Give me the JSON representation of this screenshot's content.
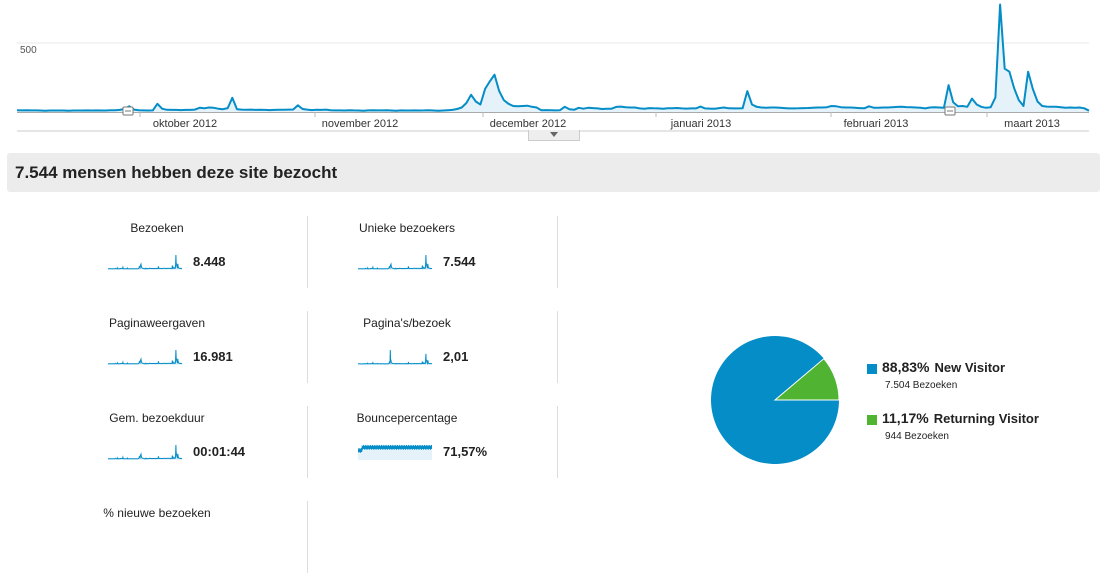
{
  "colors": {
    "line": "#058dc7",
    "fill": "#e6f2fa",
    "new": "#058dc7",
    "returning": "#50b432",
    "headline_bg": "#ececec"
  },
  "chart_data": {
    "type": "area",
    "title": "",
    "y_tick_label": "500",
    "ylim": [
      0,
      750
    ],
    "x_labels": [
      "oktober 2012",
      "november 2012",
      "december 2012",
      "januari 2013",
      "februari 2013",
      "maart 2013"
    ],
    "series": [
      {
        "values": [
          12,
          11,
          12,
          11,
          11,
          10,
          9,
          10,
          10,
          10,
          10,
          9,
          10,
          10,
          10,
          11,
          10,
          11,
          10,
          10,
          12,
          12,
          14,
          22,
          38,
          16,
          12,
          11,
          10,
          11,
          55,
          22,
          15,
          14,
          14,
          13,
          14,
          14,
          16,
          28,
          25,
          30,
          28,
          22,
          19,
          26,
          95,
          19,
          16,
          15,
          16,
          14,
          15,
          14,
          13,
          14,
          15,
          15,
          16,
          17,
          45,
          20,
          16,
          13,
          15,
          14,
          16,
          12,
          11,
          11,
          10,
          12,
          11,
          10,
          9,
          11,
          12,
          11,
          11,
          12,
          10,
          9,
          11,
          10,
          10,
          11,
          10,
          11,
          12,
          10,
          9,
          10,
          12,
          14,
          20,
          30,
          60,
          115,
          70,
          50,
          155,
          205,
          250,
          140,
          80,
          55,
          40,
          38,
          40,
          42,
          35,
          30,
          12,
          13,
          12,
          11,
          12,
          35,
          18,
          15,
          28,
          22,
          28,
          26,
          24,
          20,
          22,
          22,
          34,
          36,
          32,
          30,
          30,
          24,
          22,
          26,
          25,
          24,
          22,
          25,
          25,
          27,
          24,
          23,
          24,
          24,
          36,
          24,
          23,
          22,
          26,
          30,
          25,
          24,
          24,
          25,
          140,
          50,
          35,
          30,
          28,
          30,
          30,
          28,
          26,
          24,
          24,
          25,
          26,
          27,
          29,
          30,
          30,
          32,
          40,
          38,
          32,
          30,
          30,
          28,
          26,
          25,
          38,
          29,
          29,
          30,
          30,
          32,
          34,
          35,
          33,
          32,
          30,
          28,
          24,
          30,
          32,
          30,
          28,
          180,
          65,
          38,
          40,
          35,
          90,
          50,
          35,
          28,
          32,
          98,
          720,
          290,
          270,
          160,
          80,
          40,
          270,
          155,
          70,
          40,
          36,
          35,
          35,
          32,
          28,
          30,
          28,
          30,
          25,
          9
        ]
      }
    ],
    "annotations_at": [
      18,
      136
    ]
  },
  "collapse_button": "",
  "headline": "7.544 mensen hebben deze site bezocht",
  "metrics": [
    {
      "label": "Bezoeken",
      "value": "8.448"
    },
    {
      "label": "Unieke bezoekers",
      "value": "7.544"
    },
    {
      "label": "Paginaweergaven",
      "value": "16.981"
    },
    {
      "label": "Pagina's/bezoek",
      "value": "2,01"
    },
    {
      "label": "Gem. bezoekduur",
      "value": "00:01:44"
    },
    {
      "label": "Bouncepercentage",
      "value": "71,57%"
    },
    {
      "label": "% nieuwe bezoeken",
      "value": ""
    }
  ],
  "pie": {
    "slices": [
      {
        "name": "New Visitor",
        "pct_label": "88,83%",
        "value": 88.83,
        "sub": "7.504 Bezoeken"
      },
      {
        "name": "Returning Visitor",
        "pct_label": "11,17%",
        "value": 11.17,
        "sub": "944 Bezoeken"
      }
    ]
  }
}
